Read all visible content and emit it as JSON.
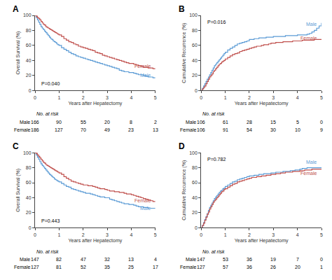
{
  "chart_data": [
    {
      "type": "step",
      "title": "A",
      "xlabel": "Years after Hepatectomy",
      "ylabel": "Overall Survival (%)",
      "x": [
        0,
        0.05,
        0.1,
        0.15,
        0.2,
        0.25,
        0.3,
        0.35,
        0.4,
        0.45,
        0.5,
        0.55,
        0.6,
        0.65,
        0.7,
        0.75,
        0.8,
        0.85,
        0.9,
        0.95,
        1.0,
        1.1,
        1.2,
        1.3,
        1.4,
        1.5,
        1.6,
        1.7,
        1.8,
        1.9,
        2.0,
        2.1,
        2.2,
        2.3,
        2.4,
        2.5,
        2.6,
        2.7,
        2.8,
        2.9,
        3.0,
        3.1,
        3.2,
        3.3,
        3.4,
        3.5,
        3.6,
        3.7,
        3.8,
        3.9,
        4.0,
        4.1,
        4.2,
        4.3,
        4.4,
        4.5,
        4.6,
        4.7,
        4.8,
        4.9,
        5.0
      ],
      "xlim": [
        0,
        5
      ],
      "xticks": [
        0,
        1,
        2,
        3,
        4,
        5
      ],
      "ylim": [
        0,
        100
      ],
      "yticks": [
        0,
        20,
        40,
        60,
        80,
        100
      ],
      "grid": false,
      "series": [
        {
          "name": "Male",
          "color": "#5B9BD5",
          "values": [
            100,
            97,
            94,
            91,
            88,
            85,
            83,
            81,
            79,
            77,
            75,
            73,
            71,
            69,
            68,
            66,
            65,
            64,
            62,
            61,
            60,
            57,
            55,
            53,
            51,
            49,
            48,
            46,
            45,
            44,
            43,
            42,
            41,
            40,
            39,
            38,
            37,
            36,
            35,
            34,
            33,
            32,
            31,
            30,
            29,
            27,
            26,
            25,
            25,
            24,
            24,
            23,
            22,
            21,
            21,
            20,
            19,
            18,
            18,
            17,
            17
          ],
          "at_risk": [
            166,
            90,
            55,
            20,
            8,
            2
          ]
        },
        {
          "name": "Female",
          "color": "#C0504D",
          "values": [
            100,
            99,
            97,
            96,
            94,
            92,
            90,
            88,
            87,
            85,
            84,
            83,
            82,
            81,
            80,
            79,
            78,
            77,
            76,
            75,
            74,
            72,
            69,
            67,
            65,
            64,
            62,
            61,
            59,
            58,
            57,
            56,
            55,
            54,
            53,
            51,
            50,
            49,
            47,
            46,
            45,
            44,
            43,
            42,
            41,
            40,
            39,
            38,
            37,
            36,
            36,
            35,
            34,
            33,
            32,
            31,
            31,
            30,
            30,
            29,
            29
          ],
          "at_risk": [
            186,
            127,
            70,
            49,
            23,
            13
          ]
        }
      ],
      "at_risk_label": "No. at risk",
      "at_risk_x": [
        0,
        1,
        2,
        3,
        4,
        5
      ],
      "annotations": [
        {
          "text": "P=0.040"
        },
        {
          "text": "Male",
          "x": 4.85,
          "y": 20,
          "color": "#5B9BD5"
        },
        {
          "text": "Female",
          "x": 4.85,
          "y": 32,
          "color": "#C0504D"
        }
      ]
    },
    {
      "type": "step",
      "title": "B",
      "xlabel": "Years after Hepatectomy",
      "ylabel": "Cumulative Recurrence (%)",
      "x": [
        0,
        0.05,
        0.1,
        0.15,
        0.2,
        0.25,
        0.3,
        0.35,
        0.4,
        0.45,
        0.5,
        0.55,
        0.6,
        0.65,
        0.7,
        0.75,
        0.8,
        0.85,
        0.9,
        0.95,
        1.0,
        1.1,
        1.2,
        1.3,
        1.4,
        1.5,
        1.6,
        1.7,
        1.8,
        1.9,
        2.0,
        2.1,
        2.2,
        2.3,
        2.4,
        2.5,
        2.6,
        2.7,
        2.8,
        2.9,
        3.0,
        3.1,
        3.2,
        3.3,
        3.4,
        3.5,
        3.6,
        3.7,
        3.8,
        3.9,
        4.0,
        4.1,
        4.2,
        4.3,
        4.4,
        4.5,
        4.6,
        4.7,
        4.8,
        4.9,
        5.0
      ],
      "xlim": [
        0,
        5
      ],
      "xticks": [
        0,
        1,
        2,
        3,
        4,
        5
      ],
      "ylim": [
        0,
        100
      ],
      "yticks": [
        0,
        20,
        40,
        60,
        80,
        100
      ],
      "grid": false,
      "series": [
        {
          "name": "Male",
          "color": "#5B9BD5",
          "values": [
            0,
            3,
            6,
            9,
            12,
            15,
            18,
            21,
            24,
            27,
            30,
            33,
            35,
            37,
            39,
            41,
            43,
            45,
            47,
            49,
            51,
            54,
            56,
            58,
            60,
            62,
            63,
            64,
            65,
            66,
            68,
            68,
            69,
            69,
            70,
            70,
            70,
            71,
            71,
            71,
            72,
            72,
            72,
            72,
            72,
            73,
            73,
            73,
            73,
            73,
            74,
            74,
            74,
            74,
            75,
            76,
            78,
            80,
            83,
            86,
            90
          ],
          "at_risk": [
            106,
            61,
            28,
            15,
            5,
            0
          ]
        },
        {
          "name": "Female",
          "color": "#C0504D",
          "values": [
            0,
            2,
            4,
            6,
            9,
            12,
            15,
            18,
            20,
            22,
            25,
            27,
            29,
            31,
            33,
            35,
            36,
            38,
            39,
            40,
            42,
            44,
            46,
            48,
            49,
            50,
            52,
            53,
            54,
            55,
            56,
            57,
            58,
            59,
            59,
            60,
            61,
            61,
            62,
            63,
            63,
            64,
            64,
            64,
            65,
            65,
            65,
            65,
            66,
            66,
            66,
            66,
            67,
            67,
            67,
            67,
            67,
            68,
            68,
            68,
            68
          ],
          "at_risk": [
            106,
            91,
            54,
            30,
            10,
            9
          ]
        }
      ],
      "at_risk_label": "No. at risk",
      "at_risk_x": [
        0,
        1,
        2,
        3,
        4,
        5
      ],
      "annotations": [
        {
          "text": "P=0.016"
        },
        {
          "text": "Male",
          "x": 4.85,
          "y": 88,
          "color": "#5B9BD5"
        },
        {
          "text": "Female",
          "x": 4.85,
          "y": 70,
          "color": "#C0504D"
        }
      ]
    },
    {
      "type": "step",
      "title": "C",
      "xlabel": "Years after Hepatectomy",
      "ylabel": "Overall Survival (%)",
      "x": [
        0,
        0.05,
        0.1,
        0.15,
        0.2,
        0.25,
        0.3,
        0.35,
        0.4,
        0.45,
        0.5,
        0.55,
        0.6,
        0.65,
        0.7,
        0.75,
        0.8,
        0.85,
        0.9,
        0.95,
        1.0,
        1.1,
        1.2,
        1.3,
        1.4,
        1.5,
        1.6,
        1.7,
        1.8,
        1.9,
        2.0,
        2.1,
        2.2,
        2.3,
        2.4,
        2.5,
        2.6,
        2.7,
        2.8,
        2.9,
        3.0,
        3.1,
        3.2,
        3.3,
        3.4,
        3.5,
        3.6,
        3.7,
        3.8,
        3.9,
        4.0,
        4.1,
        4.2,
        4.3,
        4.4,
        4.5,
        4.6,
        4.7,
        4.8,
        4.9,
        5.0
      ],
      "xlim": [
        0,
        5
      ],
      "xticks": [
        0,
        1,
        2,
        3,
        4,
        5
      ],
      "ylim": [
        0,
        100
      ],
      "yticks": [
        0,
        20,
        40,
        60,
        80,
        100
      ],
      "grid": false,
      "series": [
        {
          "name": "Male",
          "color": "#5B9BD5",
          "values": [
            100,
            97,
            94,
            91,
            88,
            85,
            83,
            81,
            79,
            77,
            75,
            73,
            71,
            70,
            68,
            67,
            65,
            64,
            63,
            62,
            61,
            59,
            57,
            55,
            54,
            52,
            51,
            50,
            49,
            48,
            47,
            46,
            46,
            45,
            44,
            43,
            42,
            41,
            41,
            40,
            40,
            38,
            37,
            36,
            35,
            34,
            33,
            32,
            32,
            31,
            31,
            30,
            29,
            28,
            28,
            27,
            27,
            26,
            26,
            26,
            26
          ],
          "at_risk": [
            147,
            82,
            47,
            32,
            13,
            4
          ]
        },
        {
          "name": "Female",
          "color": "#C0504D",
          "values": [
            100,
            99,
            97,
            95,
            93,
            91,
            89,
            87,
            86,
            84,
            83,
            82,
            81,
            80,
            79,
            78,
            77,
            76,
            75,
            74,
            73,
            71,
            68,
            66,
            64,
            62,
            61,
            60,
            59,
            58,
            57,
            57,
            56,
            56,
            55,
            54,
            53,
            52,
            52,
            51,
            50,
            49,
            49,
            48,
            48,
            47,
            47,
            46,
            45,
            45,
            44,
            43,
            42,
            41,
            40,
            39,
            38,
            37,
            36,
            35,
            35
          ],
          "at_risk": [
            127,
            81,
            52,
            35,
            25,
            17
          ]
        }
      ],
      "at_risk_label": "No. at risk",
      "at_risk_x": [
        0,
        1,
        2,
        3,
        4,
        5
      ],
      "annotations": [
        {
          "text": "P=0.443"
        },
        {
          "text": "Male",
          "x": 4.85,
          "y": 26,
          "color": "#5B9BD5"
        },
        {
          "text": "Female",
          "x": 4.85,
          "y": 36,
          "color": "#C0504D"
        }
      ]
    },
    {
      "type": "step",
      "title": "D",
      "xlabel": "Years after Hepatectomy",
      "ylabel": "Cumulative Recurrence (%)",
      "x": [
        0,
        0.05,
        0.1,
        0.15,
        0.2,
        0.25,
        0.3,
        0.35,
        0.4,
        0.45,
        0.5,
        0.55,
        0.6,
        0.65,
        0.7,
        0.75,
        0.8,
        0.85,
        0.9,
        0.95,
        1.0,
        1.1,
        1.2,
        1.3,
        1.4,
        1.5,
        1.6,
        1.7,
        1.8,
        1.9,
        2.0,
        2.1,
        2.2,
        2.3,
        2.4,
        2.5,
        2.6,
        2.7,
        2.8,
        2.9,
        3.0,
        3.1,
        3.2,
        3.3,
        3.4,
        3.5,
        3.6,
        3.7,
        3.8,
        3.9,
        4.0,
        4.1,
        4.2,
        4.3,
        4.4,
        4.5,
        4.6,
        4.7,
        4.8,
        4.9,
        5.0
      ],
      "xlim": [
        0,
        5
      ],
      "xticks": [
        0,
        1,
        2,
        3,
        4,
        5
      ],
      "ylim": [
        0,
        100
      ],
      "yticks": [
        0,
        20,
        40,
        60,
        80,
        100
      ],
      "grid": false,
      "series": [
        {
          "name": "Male",
          "color": "#5B9BD5",
          "values": [
            0,
            3,
            7,
            11,
            15,
            19,
            23,
            27,
            30,
            33,
            36,
            39,
            41,
            43,
            45,
            47,
            49,
            50,
            52,
            53,
            55,
            57,
            59,
            61,
            62,
            64,
            65,
            66,
            67,
            68,
            69,
            69,
            70,
            70,
            71,
            71,
            72,
            72,
            72,
            73,
            73,
            74,
            74,
            74,
            75,
            75,
            75,
            76,
            76,
            77,
            77,
            78,
            79,
            79,
            80,
            80,
            80,
            80,
            80,
            80,
            80
          ],
          "at_risk": [
            147,
            53,
            36,
            19,
            7,
            0
          ]
        },
        {
          "name": "Female",
          "color": "#C0504D",
          "values": [
            0,
            3,
            6,
            10,
            14,
            18,
            21,
            25,
            28,
            31,
            34,
            36,
            38,
            40,
            42,
            44,
            46,
            48,
            49,
            51,
            52,
            54,
            56,
            58,
            59,
            61,
            62,
            63,
            64,
            65,
            66,
            67,
            67,
            68,
            68,
            69,
            69,
            70,
            70,
            71,
            71,
            72,
            72,
            73,
            73,
            74,
            74,
            74,
            75,
            75,
            75,
            76,
            76,
            77,
            77,
            77,
            78,
            78,
            78,
            78,
            78
          ],
          "at_risk": [
            127,
            57,
            36,
            26,
            20,
            1
          ]
        }
      ],
      "at_risk_label": "No. at risk",
      "at_risk_x": [
        0,
        1,
        2,
        3,
        4,
        5
      ],
      "annotations": [
        {
          "text": "P=0.782"
        },
        {
          "text": "Male",
          "x": 4.85,
          "y": 82,
          "color": "#5B9BD5"
        },
        {
          "text": "Female",
          "x": 4.85,
          "y": 78,
          "color": "#C0504D"
        }
      ]
    }
  ]
}
